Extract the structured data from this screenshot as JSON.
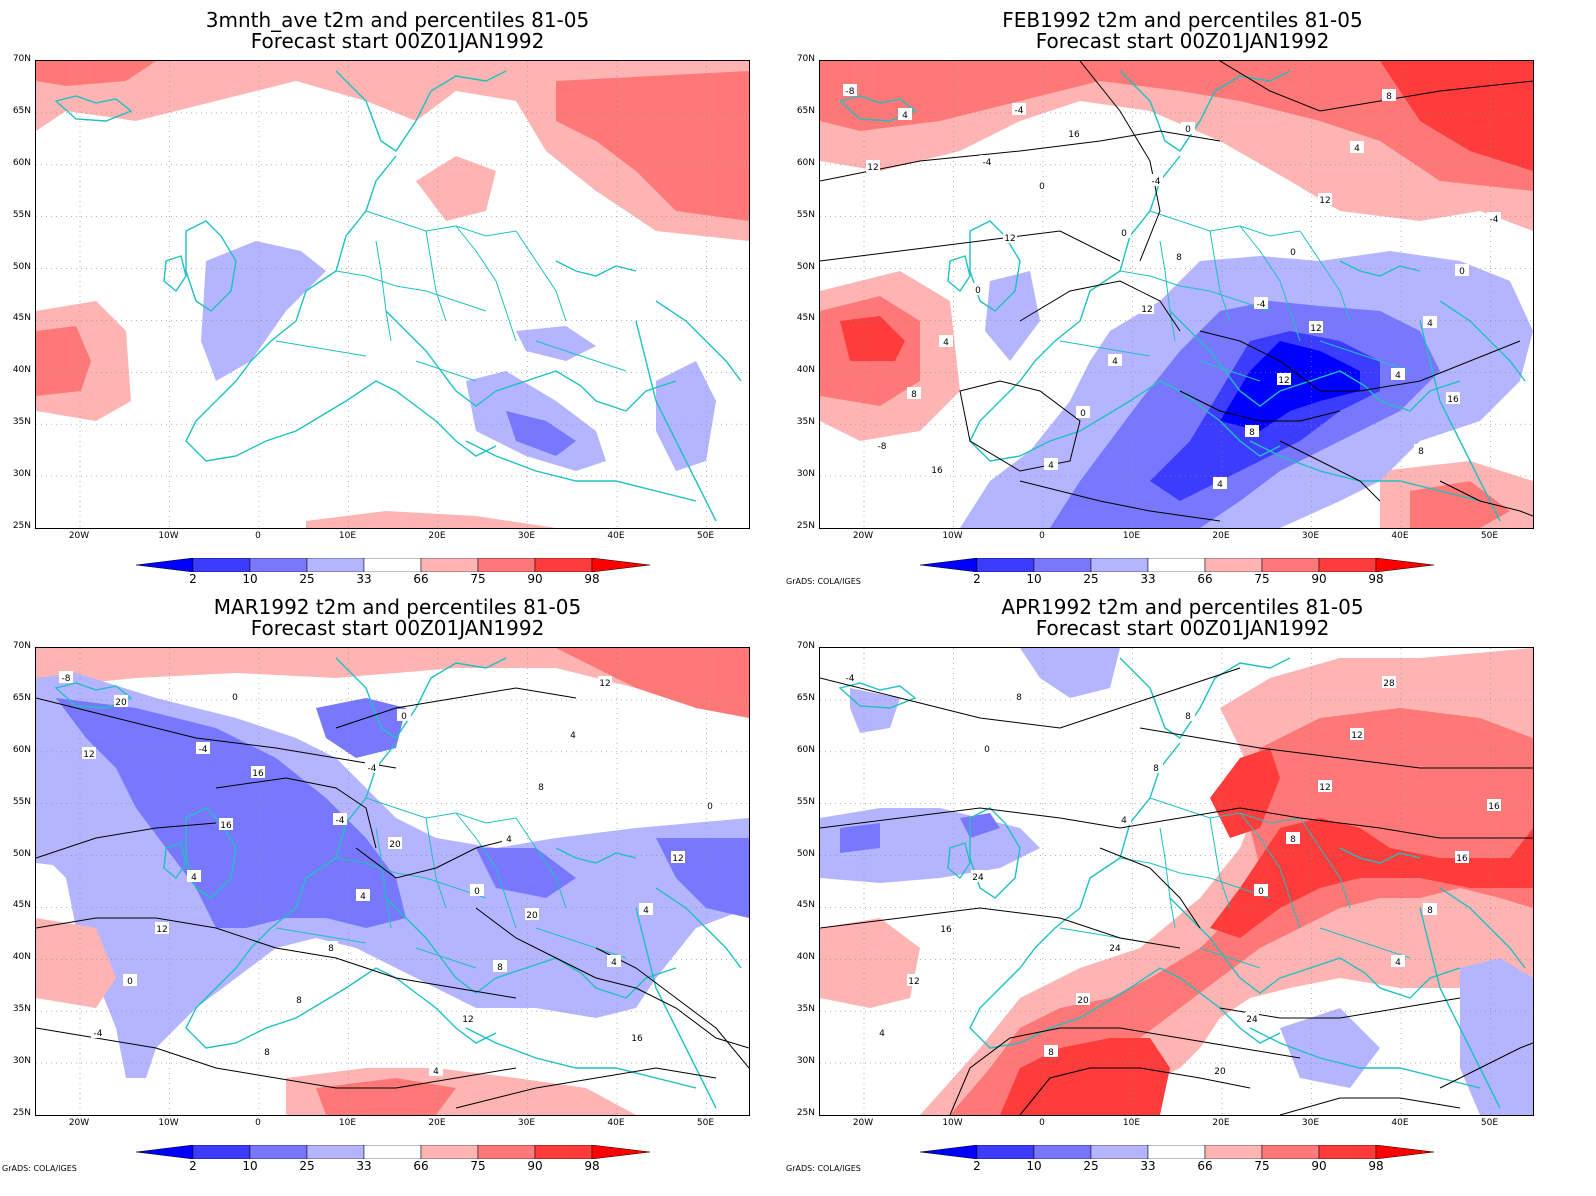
{
  "panels": [
    {
      "title_line1": "3mnth_ave t2m and percentiles 81-05",
      "title_line2": "Forecast start 00Z01JAN1992",
      "contours": false
    },
    {
      "title_line1": "FEB1992 t2m and percentiles 81-05",
      "title_line2": "Forecast start 00Z01JAN1992",
      "contours": true,
      "contour_labels": [
        "-8",
        "-4",
        "0",
        "-4",
        "4",
        "-8",
        "-4",
        "-4",
        "0",
        "4",
        "8",
        "4",
        "0",
        "12",
        "0",
        "4",
        "0",
        "4",
        "4",
        "-4",
        "0",
        "4",
        "8",
        "8",
        "12",
        "12",
        "12",
        "12",
        "8",
        "4",
        "0",
        "8",
        "12",
        "16",
        "16",
        "16"
      ]
    },
    {
      "title_line1": "MAR1992 t2m and percentiles 81-05",
      "title_line2": "Forecast start 00Z01JAN1992",
      "contours": true,
      "contour_labels": [
        "-8",
        "-4",
        "-4",
        "0",
        "4",
        "-4",
        "0",
        "-4",
        "4",
        "4",
        "0",
        "8",
        "0",
        "8",
        "12",
        "12",
        "8",
        "4",
        "4",
        "0",
        "4",
        "8",
        "12",
        "12",
        "12",
        "16",
        "4",
        "8",
        "16",
        "20",
        "16",
        "20",
        "20"
      ]
    },
    {
      "title_line1": "APR1992 t2m and percentiles 81-05",
      "title_line2": "Forecast start 00Z01JAN1992",
      "contours": true,
      "contour_labels": [
        "-4",
        "0",
        "4",
        "0",
        "4",
        "4",
        "8",
        "8",
        "8",
        "8",
        "12",
        "8",
        "8",
        "12",
        "16",
        "16",
        "20",
        "20",
        "12",
        "16",
        "24",
        "24",
        "24",
        "28"
      ]
    }
  ],
  "lat_labels": [
    "70N",
    "65N",
    "60N",
    "55N",
    "50N",
    "45N",
    "40N",
    "35N",
    "30N",
    "25N"
  ],
  "lon_labels": [
    "20W",
    "10W",
    "0",
    "10E",
    "20E",
    "30E",
    "40E",
    "50E"
  ],
  "colorbar": {
    "labels": [
      "2",
      "10",
      "25",
      "33",
      "66",
      "75",
      "90",
      "98"
    ],
    "colors": [
      "#0000ff",
      "#3c3cff",
      "#7878ff",
      "#b4b4ff",
      "#ffffff",
      "#ffb4b4",
      "#ff7878",
      "#ff3c3c",
      "#ff0000"
    ]
  },
  "credit": "GrADS: COLA/IGES",
  "coast_color": "#20c0c0"
}
